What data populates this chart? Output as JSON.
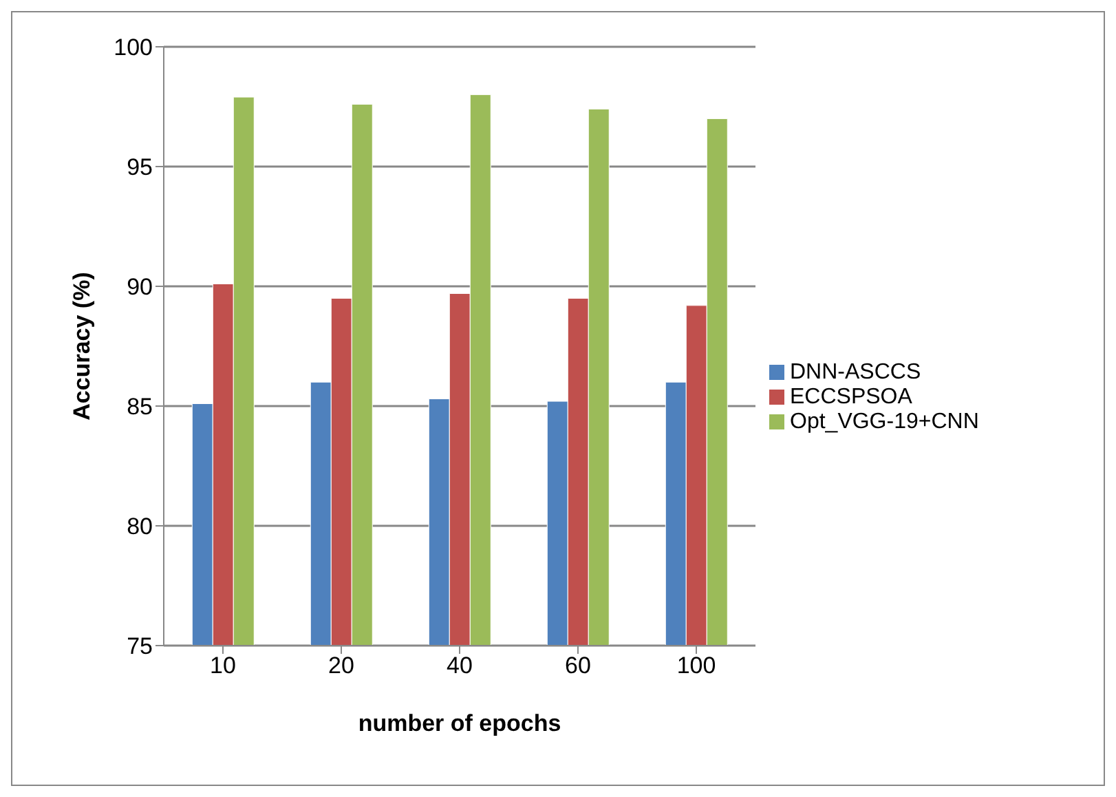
{
  "chart_data": {
    "type": "bar",
    "xlabel": "number of epochs",
    "ylabel": "Accuracy (%)",
    "categories": [
      "10",
      "20",
      "40",
      "60",
      "100"
    ],
    "series": [
      {
        "name": "DNN-ASCCS",
        "color": "#4f81bd",
        "values": [
          85.1,
          86.0,
          85.3,
          85.2,
          86.0
        ]
      },
      {
        "name": "ECCSPSOA",
        "color": "#c0504d",
        "values": [
          90.1,
          89.5,
          89.7,
          89.5,
          89.2
        ]
      },
      {
        "name": "Opt_VGG-19+CNN",
        "color": "#9bbb59",
        "values": [
          97.9,
          97.6,
          98.0,
          97.4,
          97.0
        ]
      }
    ],
    "ylim": [
      75,
      100
    ],
    "yticks": [
      75,
      80,
      85,
      90,
      95,
      100
    ],
    "grid": "y",
    "legend": "right"
  }
}
